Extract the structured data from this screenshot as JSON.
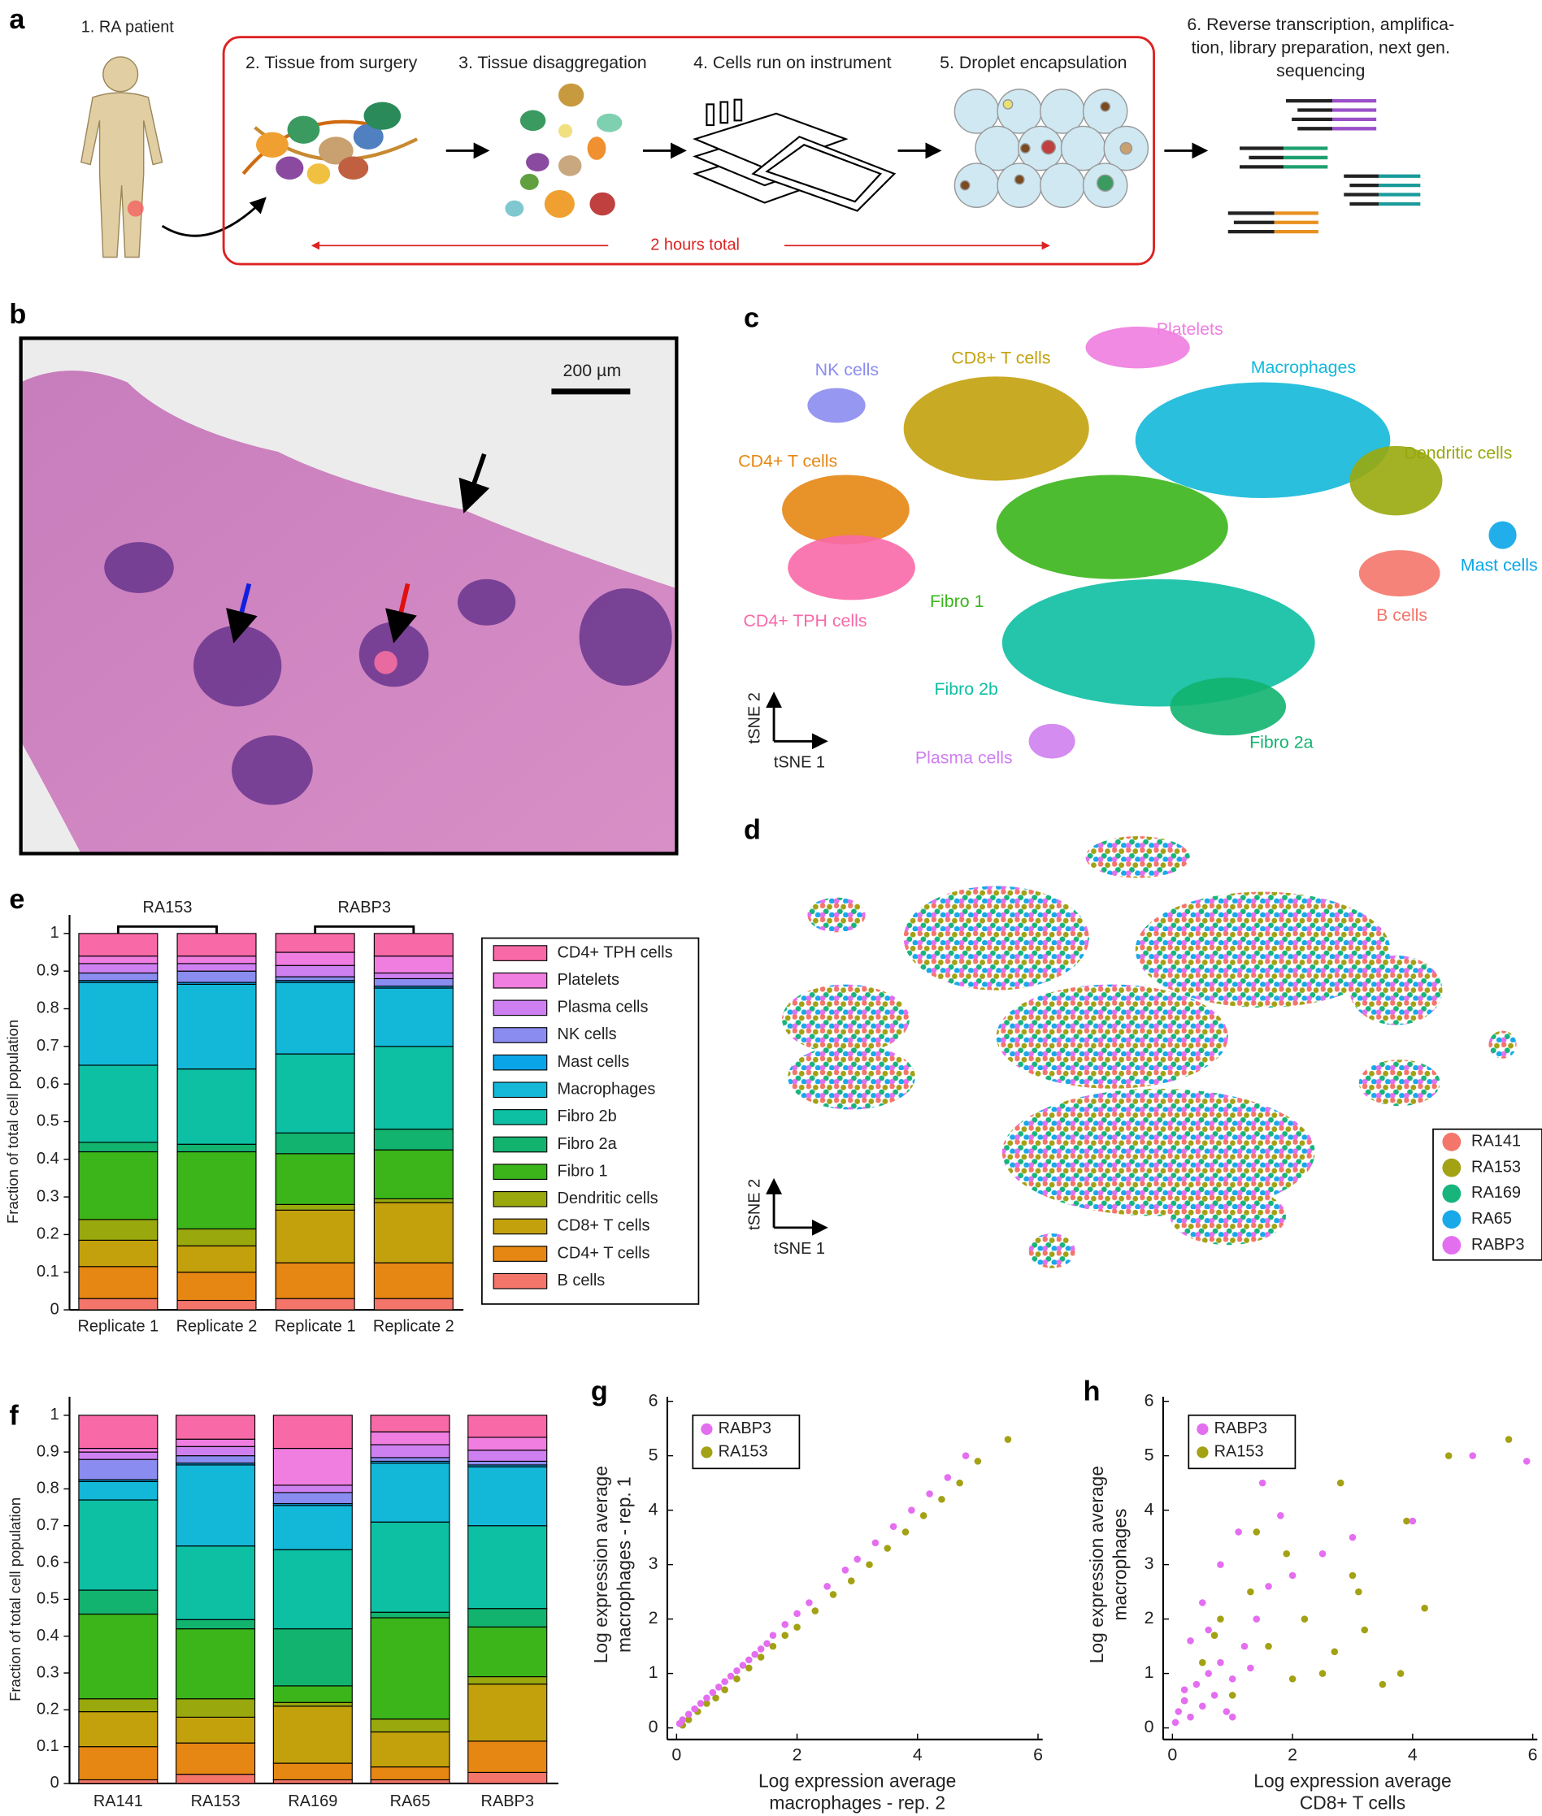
{
  "panel_labels": [
    "a",
    "b",
    "c",
    "d",
    "e",
    "f",
    "g",
    "h"
  ],
  "workflow": {
    "patient": "1. RA patient",
    "steps": [
      "2. Tissue from surgery",
      "3. Tissue disaggregation",
      "4. Cells run on instrument",
      "5. Droplet encapsulation"
    ],
    "sequencing": [
      "6. Reverse transcription, amplifica-",
      "tion, library preparation, next gen.",
      "sequencing"
    ],
    "duration": "2 hours total"
  },
  "histology": {
    "scale_bar": "200 µm"
  },
  "tsne_clusters": {
    "axis_x": "tSNE 1",
    "axis_y": "tSNE 2",
    "clusters": [
      {
        "name": "NK cells",
        "color": "#8b8cf0"
      },
      {
        "name": "CD8+ T cells",
        "color": "#c3a10c"
      },
      {
        "name": "Platelets",
        "color": "#f07de0"
      },
      {
        "name": "Macrophages",
        "color": "#13b8d9"
      },
      {
        "name": "CD4+ T cells",
        "color": "#e68613"
      },
      {
        "name": "Dendritic cells",
        "color": "#99a80d"
      },
      {
        "name": "CD4+ TPH cells",
        "color": "#f869a8"
      },
      {
        "name": "Fibro 1",
        "color": "#3bb51a"
      },
      {
        "name": "Mast cells",
        "color": "#0aa5e8"
      },
      {
        "name": "B cells",
        "color": "#f4756a"
      },
      {
        "name": "Fibro 2b",
        "color": "#0dbfa3"
      },
      {
        "name": "Fibro 2a",
        "color": "#12b36f"
      },
      {
        "name": "Plasma cells",
        "color": "#cf80f0"
      }
    ]
  },
  "tsne_samples": {
    "axis_x": "tSNE 1",
    "axis_y": "tSNE 2",
    "samples": [
      {
        "name": "RA141",
        "color": "#f4756a"
      },
      {
        "name": "RA153",
        "color": "#a3a114"
      },
      {
        "name": "RA169",
        "color": "#17b57c"
      },
      {
        "name": "RA65",
        "color": "#17a9e8"
      },
      {
        "name": "RABP3",
        "color": "#e46ef0"
      }
    ]
  },
  "chart_data": [
    {
      "type": "bar",
      "stacked": true,
      "ylabel": "Fraction of total cell population",
      "group_labels": [
        "RA153",
        "RABP3"
      ],
      "categories": [
        "Replicate 1",
        "Replicate 2",
        "Replicate 1",
        "Replicate 2"
      ],
      "ylim": [
        0,
        1
      ],
      "yticks": [
        0,
        0.1,
        0.2,
        0.3,
        0.4,
        0.5,
        0.6,
        0.7,
        0.8,
        0.9,
        1
      ],
      "legend": true,
      "series": [
        {
          "name": "B cells",
          "color": "#f4756a",
          "values": [
            0.03,
            0.025,
            0.03,
            0.03
          ]
        },
        {
          "name": "CD4+ T cells",
          "color": "#e68613",
          "values": [
            0.085,
            0.075,
            0.095,
            0.095
          ]
        },
        {
          "name": "CD8+ T cells",
          "color": "#c3a10c",
          "values": [
            0.07,
            0.07,
            0.14,
            0.16
          ]
        },
        {
          "name": "Dendritic cells",
          "color": "#99a80d",
          "values": [
            0.055,
            0.045,
            0.015,
            0.01
          ]
        },
        {
          "name": "Fibro 1",
          "color": "#3bb51a",
          "values": [
            0.18,
            0.205,
            0.135,
            0.13
          ]
        },
        {
          "name": "Fibro 2a",
          "color": "#12b36f",
          "values": [
            0.025,
            0.02,
            0.055,
            0.055
          ]
        },
        {
          "name": "Fibro 2b",
          "color": "#0dbfa3",
          "values": [
            0.205,
            0.2,
            0.21,
            0.22
          ]
        },
        {
          "name": "Macrophages",
          "color": "#13b8d9",
          "values": [
            0.22,
            0.225,
            0.19,
            0.155
          ]
        },
        {
          "name": "Mast cells",
          "color": "#0aa5e8",
          "values": [
            0.005,
            0.005,
            0.005,
            0.005
          ]
        },
        {
          "name": "NK cells",
          "color": "#8b8cf0",
          "values": [
            0.02,
            0.03,
            0.01,
            0.02
          ]
        },
        {
          "name": "Plasma cells",
          "color": "#cf80f0",
          "values": [
            0.025,
            0.02,
            0.03,
            0.015
          ]
        },
        {
          "name": "Platelets",
          "color": "#f07de0",
          "values": [
            0.02,
            0.02,
            0.035,
            0.045
          ]
        },
        {
          "name": "CD4+ TPH cells",
          "color": "#f869a8",
          "values": [
            0.06,
            0.06,
            0.05,
            0.06
          ]
        }
      ]
    },
    {
      "type": "bar",
      "stacked": true,
      "ylabel": "Fraction of total cell population",
      "categories": [
        "RA141",
        "RA153",
        "RA169",
        "RA65",
        "RABP3"
      ],
      "ylim": [
        0,
        1
      ],
      "yticks": [
        0,
        0.1,
        0.2,
        0.3,
        0.4,
        0.5,
        0.6,
        0.7,
        0.8,
        0.9,
        1
      ],
      "legend": false,
      "series": [
        {
          "name": "B cells",
          "color": "#f4756a",
          "values": [
            0.01,
            0.025,
            0.01,
            0.01,
            0.03
          ]
        },
        {
          "name": "CD4+ T cells",
          "color": "#e68613",
          "values": [
            0.09,
            0.085,
            0.045,
            0.035,
            0.085
          ]
        },
        {
          "name": "CD8+ T cells",
          "color": "#c3a10c",
          "values": [
            0.095,
            0.07,
            0.155,
            0.095,
            0.155
          ]
        },
        {
          "name": "Dendritic cells",
          "color": "#99a80d",
          "values": [
            0.035,
            0.05,
            0.01,
            0.035,
            0.02
          ]
        },
        {
          "name": "Fibro 1",
          "color": "#3bb51a",
          "values": [
            0.23,
            0.19,
            0.045,
            0.275,
            0.135
          ]
        },
        {
          "name": "Fibro 2a",
          "color": "#12b36f",
          "values": [
            0.065,
            0.025,
            0.155,
            0.015,
            0.05
          ]
        },
        {
          "name": "Fibro 2b",
          "color": "#0dbfa3",
          "values": [
            0.245,
            0.2,
            0.215,
            0.245,
            0.225
          ]
        },
        {
          "name": "Macrophages",
          "color": "#13b8d9",
          "values": [
            0.05,
            0.22,
            0.12,
            0.16,
            0.16
          ]
        },
        {
          "name": "Mast cells",
          "color": "#0aa5e8",
          "values": [
            0.005,
            0.005,
            0.005,
            0.005,
            0.005
          ]
        },
        {
          "name": "NK cells",
          "color": "#8b8cf0",
          "values": [
            0.055,
            0.02,
            0.03,
            0.01,
            0.01
          ]
        },
        {
          "name": "Plasma cells",
          "color": "#cf80f0",
          "values": [
            0.02,
            0.025,
            0.02,
            0.035,
            0.03
          ]
        },
        {
          "name": "Platelets",
          "color": "#f07de0",
          "values": [
            0.01,
            0.02,
            0.1,
            0.035,
            0.035
          ]
        },
        {
          "name": "CD4+ TPH cells",
          "color": "#f869a8",
          "values": [
            0.09,
            0.065,
            0.09,
            0.045,
            0.06
          ]
        }
      ]
    },
    {
      "type": "scatter",
      "xlabel": [
        "Log expression average",
        "macrophages - rep. 2"
      ],
      "ylabel": [
        "Log expression average",
        "macrophages - rep. 1"
      ],
      "xlim": [
        0,
        6
      ],
      "xticks": [
        0,
        2,
        4,
        6
      ],
      "ylim": [
        0,
        6
      ],
      "yticks": [
        0,
        1,
        2,
        3,
        4,
        5,
        6
      ],
      "legend": "upper left",
      "series": [
        {
          "name": "RABP3",
          "color": "#e46ef0",
          "x": [
            0.05,
            0.1,
            0.2,
            0.3,
            0.4,
            0.5,
            0.6,
            0.7,
            0.8,
            0.9,
            1.0,
            1.1,
            1.2,
            1.3,
            1.4,
            1.5,
            1.6,
            1.8,
            2.0,
            2.2,
            2.5,
            2.8,
            3.0,
            3.3,
            3.6,
            3.9,
            4.2,
            4.5,
            4.8
          ],
          "values": [
            0.08,
            0.15,
            0.25,
            0.35,
            0.45,
            0.55,
            0.65,
            0.75,
            0.85,
            0.95,
            1.05,
            1.15,
            1.25,
            1.35,
            1.45,
            1.55,
            1.7,
            1.9,
            2.1,
            2.3,
            2.6,
            2.9,
            3.1,
            3.4,
            3.7,
            4.0,
            4.3,
            4.6,
            5.0
          ]
        },
        {
          "name": "RA153",
          "color": "#a3a114",
          "x": [
            0.1,
            0.2,
            0.35,
            0.5,
            0.65,
            0.8,
            1.0,
            1.2,
            1.4,
            1.6,
            1.8,
            2.0,
            2.3,
            2.6,
            2.9,
            3.2,
            3.5,
            3.8,
            4.1,
            4.4,
            4.7,
            5.0,
            5.5
          ],
          "values": [
            0.05,
            0.15,
            0.3,
            0.45,
            0.55,
            0.7,
            0.9,
            1.1,
            1.3,
            1.5,
            1.7,
            1.85,
            2.15,
            2.45,
            2.7,
            3.0,
            3.3,
            3.6,
            3.9,
            4.2,
            4.5,
            4.9,
            5.3
          ]
        }
      ]
    },
    {
      "type": "scatter",
      "xlabel": [
        "Log expression average",
        "CD8+ T cells"
      ],
      "ylabel": [
        "Log expression average",
        "macrophages"
      ],
      "xlim": [
        0,
        6
      ],
      "xticks": [
        0,
        2,
        4,
        6
      ],
      "ylim": [
        0,
        6
      ],
      "yticks": [
        0,
        1,
        2,
        3,
        4,
        5,
        6
      ],
      "legend": "upper left",
      "series": [
        {
          "name": "RABP3",
          "color": "#e46ef0",
          "x": [
            0.05,
            0.1,
            0.2,
            0.3,
            0.4,
            0.5,
            0.6,
            0.7,
            0.8,
            0.9,
            1.0,
            1.2,
            1.4,
            1.6,
            1.8,
            0.3,
            0.5,
            0.8,
            1.1,
            1.5,
            2.0,
            2.5,
            3.0,
            4.0,
            5.0,
            5.9,
            0.2,
            0.6,
            1.0,
            1.3
          ],
          "values": [
            0.1,
            0.3,
            0.5,
            0.2,
            0.8,
            0.4,
            1.0,
            0.6,
            1.2,
            0.3,
            0.9,
            1.5,
            2.0,
            2.6,
            3.9,
            1.6,
            2.3,
            3.0,
            3.6,
            4.5,
            2.8,
            3.2,
            3.5,
            3.8,
            5.0,
            4.9,
            0.7,
            1.8,
            0.2,
            1.1
          ]
        },
        {
          "name": "RA153",
          "color": "#a3a114",
          "x": [
            0.2,
            0.5,
            0.8,
            1.0,
            1.3,
            1.6,
            1.9,
            2.2,
            2.5,
            2.8,
            3.0,
            3.2,
            3.5,
            3.8,
            4.2,
            4.6,
            5.6,
            0.7,
            1.4,
            2.0,
            2.7,
            3.1,
            3.9
          ],
          "values": [
            0.5,
            1.2,
            2.0,
            0.6,
            2.5,
            1.5,
            3.2,
            2.0,
            1.0,
            4.5,
            2.8,
            1.8,
            0.8,
            1.0,
            2.2,
            5.0,
            5.3,
            1.7,
            3.6,
            0.9,
            1.4,
            2.5,
            3.8
          ]
        }
      ]
    }
  ]
}
